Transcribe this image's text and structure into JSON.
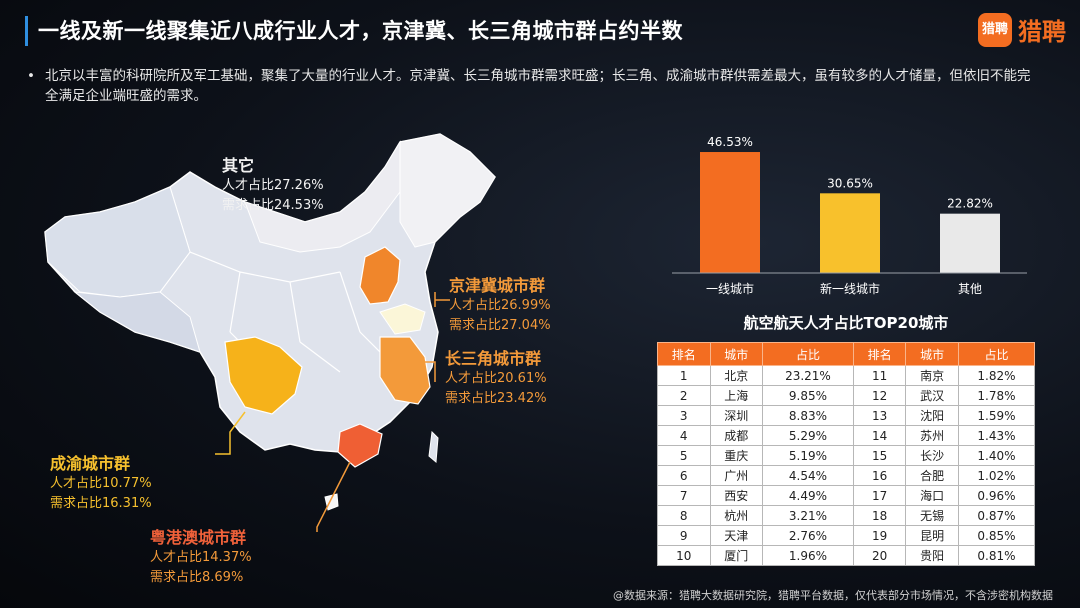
{
  "header": {
    "title": "一线及新一线聚集近八成行业人才，京津冀、长三角城市群占约半数",
    "logo_text": "猎聘",
    "logo_mark": "猎聘"
  },
  "bullet": "北京以丰富的科研院所及军工基础，聚集了大量的行业人才。京津冀、长三角城市群需求旺盛；长三角、成渝城市群供需差最大，虽有较多的人才储量，但依旧不能完全满足企业端旺盛的需求。",
  "map": {
    "other": {
      "name": "其它",
      "talent": "人才占比27.26%",
      "demand": "需求占比24.53%"
    },
    "jingjinji": {
      "name": "京津冀城市群",
      "talent": "人才占比26.99%",
      "demand": "需求占比27.04%"
    },
    "yrd": {
      "name": "长三角城市群",
      "talent": "人才占比20.61%",
      "demand": "需求占比23.42%"
    },
    "chengyu": {
      "name": "成渝城市群",
      "talent": "人才占比10.77%",
      "demand": "需求占比16.31%"
    },
    "gba": {
      "name": "粤港澳城市群",
      "talent": "人才占比14.37%",
      "demand": "需求占比8.69%"
    },
    "colors": {
      "jingjinji": "#f0862b",
      "yrd": "#f39a3a",
      "chengyu": "#f6b21a",
      "gba": "#ef5f34",
      "base": "#dfe3ec"
    }
  },
  "chart_data": {
    "type": "bar",
    "categories": [
      "一线城市",
      "新一线城市",
      "其他"
    ],
    "values": [
      46.53,
      30.65,
      22.82
    ],
    "value_labels": [
      "46.53%",
      "30.65%",
      "22.82%"
    ],
    "colors": [
      "#f36d21",
      "#f8c12c",
      "#e9e9e9"
    ],
    "ylim": [
      0,
      50
    ],
    "grid": false
  },
  "table": {
    "title": "航空航天人才占比TOP20城市",
    "headers": [
      "排名",
      "城市",
      "占比",
      "排名",
      "城市",
      "占比"
    ],
    "rows": [
      [
        "1",
        "北京",
        "23.21%",
        "11",
        "南京",
        "1.82%"
      ],
      [
        "2",
        "上海",
        "9.85%",
        "12",
        "武汉",
        "1.78%"
      ],
      [
        "3",
        "深圳",
        "8.83%",
        "13",
        "沈阳",
        "1.59%"
      ],
      [
        "4",
        "成都",
        "5.29%",
        "14",
        "苏州",
        "1.43%"
      ],
      [
        "5",
        "重庆",
        "5.19%",
        "15",
        "长沙",
        "1.40%"
      ],
      [
        "6",
        "广州",
        "4.54%",
        "16",
        "合肥",
        "1.02%"
      ],
      [
        "7",
        "西安",
        "4.49%",
        "17",
        "海口",
        "0.96%"
      ],
      [
        "8",
        "杭州",
        "3.21%",
        "18",
        "无锡",
        "0.87%"
      ],
      [
        "9",
        "天津",
        "2.76%",
        "19",
        "昆明",
        "0.85%"
      ],
      [
        "10",
        "厦门",
        "1.96%",
        "20",
        "贵阳",
        "0.81%"
      ]
    ]
  },
  "source": "@数据来源：猎聘大数据研究院，猎聘平台数据，仅代表部分市场情况，不含涉密机构数据"
}
